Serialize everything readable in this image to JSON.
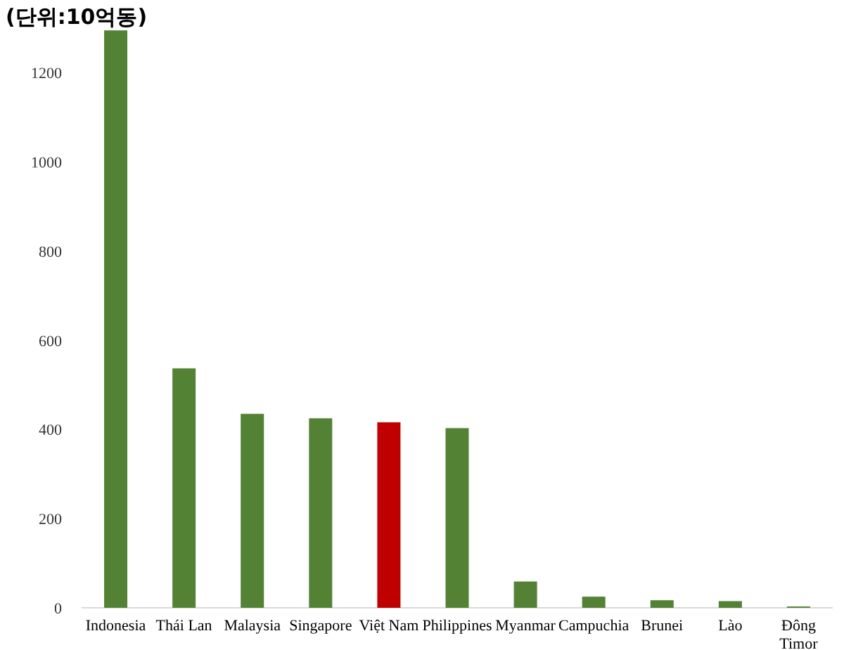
{
  "chart_data": {
    "type": "bar",
    "title": "(단위:10억동)",
    "categories": [
      "Indonesia",
      "Thái Lan",
      "Malaysia",
      "Singapore",
      "Việt Nam",
      "Philippines",
      "Myanmar",
      "Campuchia",
      "Brunei",
      "Lào",
      "Đông Timor"
    ],
    "values": [
      1295,
      537,
      435,
      425,
      416,
      403,
      59,
      25,
      17,
      15,
      3
    ],
    "colors": [
      "#548235",
      "#548235",
      "#548235",
      "#548235",
      "#c00000",
      "#548235",
      "#548235",
      "#548235",
      "#548235",
      "#548235",
      "#548235"
    ],
    "ylim": [
      0,
      1300
    ],
    "yticks": [
      0,
      200,
      400,
      600,
      800,
      1000,
      1200
    ],
    "grid": false
  }
}
